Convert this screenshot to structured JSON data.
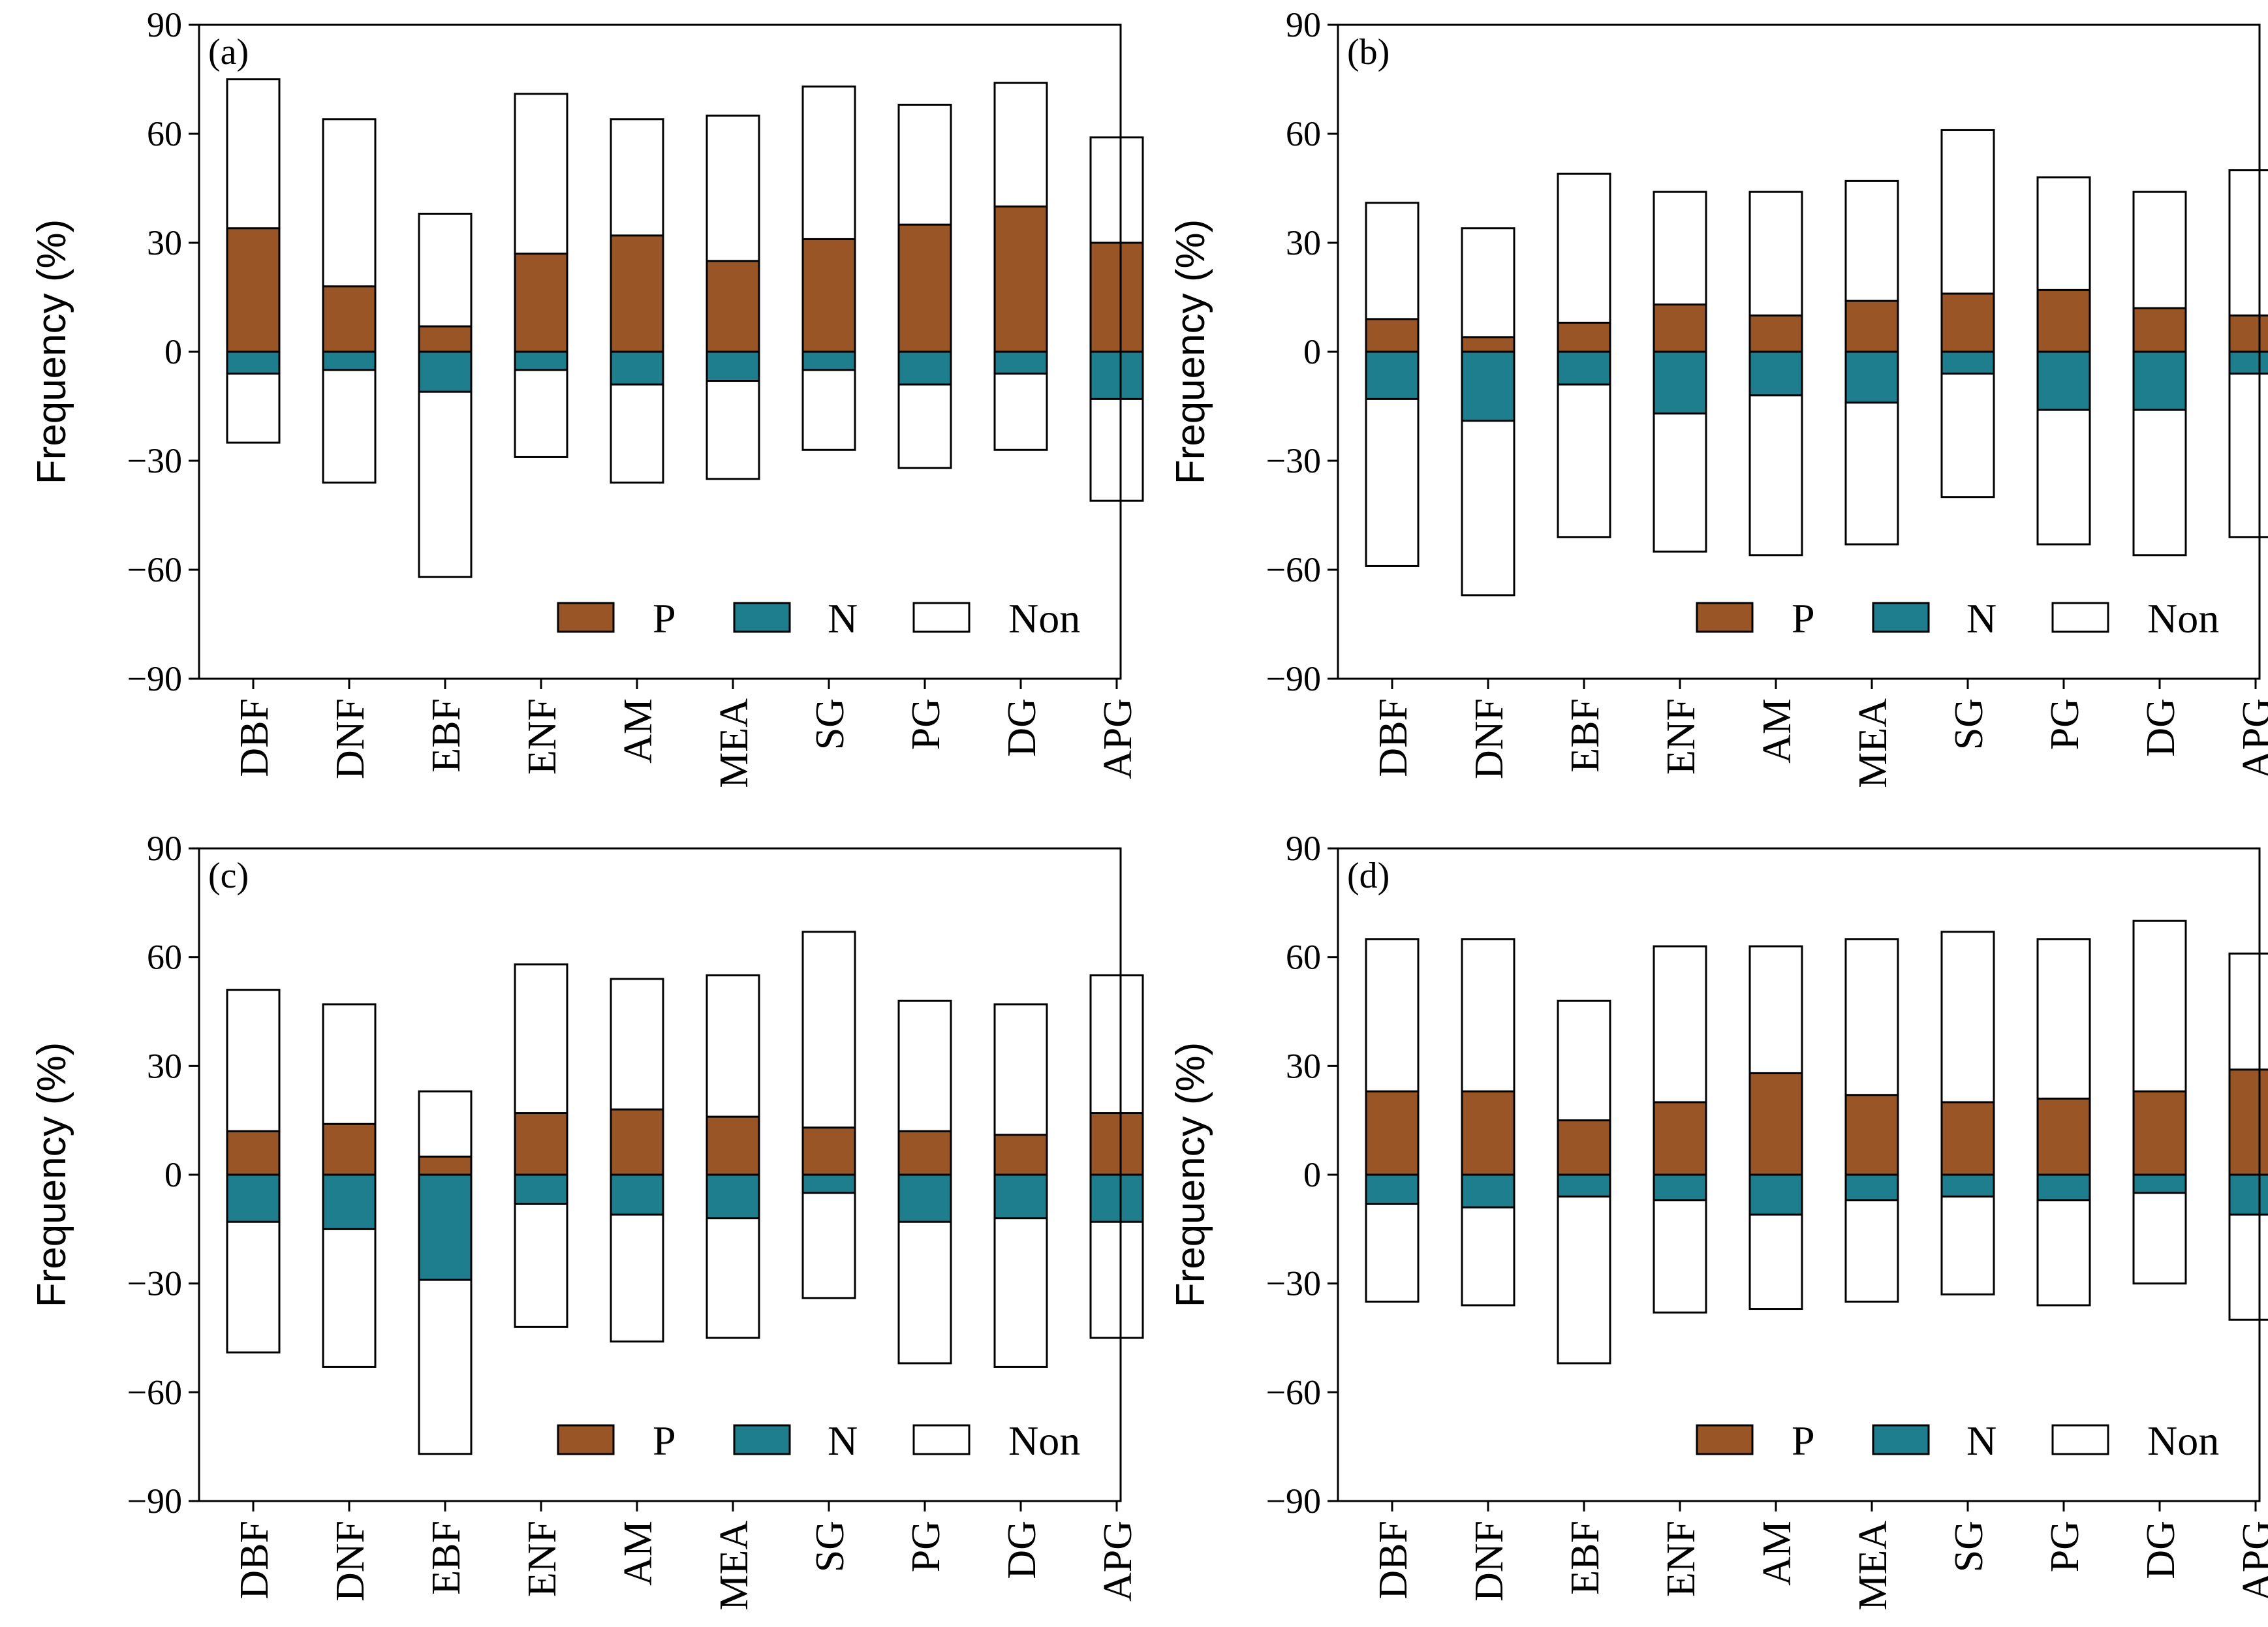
{
  "figure": {
    "legend": {
      "position": "bottom-right",
      "entries": [
        {
          "key": "P",
          "label": "P",
          "color": "#9A5526"
        },
        {
          "key": "N",
          "label": "N",
          "color": "#1E7E8E"
        },
        {
          "key": "Non",
          "label": "Non",
          "color": "#FFFFFF"
        }
      ]
    },
    "ylabel": "Frequency (%)",
    "yticks": [
      "−90",
      "−60",
      "−30",
      "0",
      "30",
      "60",
      "90"
    ]
  },
  "chart_data": [
    {
      "type": "bar",
      "panel_label": "(a)",
      "ylabel": "Frequency (%)",
      "ylim": [
        -90,
        90
      ],
      "categories": [
        "DBF",
        "DNF",
        "EBF",
        "ENF",
        "AM",
        "MEA",
        "SG",
        "PG",
        "DG",
        "APG"
      ],
      "series": [
        {
          "name": "P",
          "values": [
            34,
            18,
            7,
            27,
            32,
            25,
            31,
            35,
            40,
            30
          ]
        },
        {
          "name": "N",
          "values": [
            -6,
            -5,
            -11,
            -5,
            -9,
            -8,
            -5,
            -9,
            -6,
            -13
          ]
        },
        {
          "name": "Non",
          "top": [
            75,
            64,
            38,
            71,
            64,
            65,
            73,
            68,
            74,
            59
          ],
          "bottom": [
            -25,
            -36,
            -62,
            -29,
            -36,
            -35,
            -27,
            -32,
            -27,
            -41
          ]
        }
      ]
    },
    {
      "type": "bar",
      "panel_label": "(b)",
      "ylabel": "Frequency (%)",
      "ylim": [
        -90,
        90
      ],
      "categories": [
        "DBF",
        "DNF",
        "EBF",
        "ENF",
        "AM",
        "MEA",
        "SG",
        "PG",
        "DG",
        "APG"
      ],
      "series": [
        {
          "name": "P",
          "values": [
            9,
            4,
            8,
            13,
            10,
            14,
            16,
            17,
            12,
            10
          ]
        },
        {
          "name": "N",
          "values": [
            -13,
            -19,
            -9,
            -17,
            -12,
            -14,
            -6,
            -16,
            -16,
            -6
          ]
        },
        {
          "name": "Non",
          "top": [
            41,
            34,
            49,
            44,
            44,
            47,
            61,
            48,
            44,
            50
          ],
          "bottom": [
            -59,
            -67,
            -51,
            -55,
            -56,
            -53,
            -40,
            -53,
            -56,
            -51
          ]
        }
      ]
    },
    {
      "type": "bar",
      "panel_label": "(c)",
      "ylabel": "Frequency (%)",
      "ylim": [
        -90,
        90
      ],
      "categories": [
        "DBF",
        "DNF",
        "EBF",
        "ENF",
        "AM",
        "MEA",
        "SG",
        "PG",
        "DG",
        "APG"
      ],
      "series": [
        {
          "name": "P",
          "values": [
            12,
            14,
            5,
            17,
            18,
            16,
            13,
            12,
            11,
            17
          ]
        },
        {
          "name": "N",
          "values": [
            -13,
            -15,
            -29,
            -8,
            -11,
            -12,
            -5,
            -13,
            -12,
            -13
          ]
        },
        {
          "name": "Non",
          "top": [
            51,
            47,
            23,
            58,
            54,
            55,
            67,
            48,
            47,
            55
          ],
          "bottom": [
            -49,
            -53,
            -77,
            -42,
            -46,
            -45,
            -34,
            -52,
            -53,
            -45
          ]
        }
      ]
    },
    {
      "type": "bar",
      "panel_label": "(d)",
      "ylabel": "Frequency (%)",
      "ylim": [
        -90,
        90
      ],
      "categories": [
        "DBF",
        "DNF",
        "EBF",
        "ENF",
        "AM",
        "MEA",
        "SG",
        "PG",
        "DG",
        "APG"
      ],
      "series": [
        {
          "name": "P",
          "values": [
            23,
            23,
            15,
            20,
            28,
            22,
            20,
            21,
            23,
            29
          ]
        },
        {
          "name": "N",
          "values": [
            -8,
            -9,
            -6,
            -7,
            -11,
            -7,
            -6,
            -7,
            -5,
            -11
          ]
        },
        {
          "name": "Non",
          "top": [
            65,
            65,
            48,
            63,
            63,
            65,
            67,
            65,
            70,
            61
          ],
          "bottom": [
            -35,
            -36,
            -52,
            -38,
            -37,
            -35,
            -33,
            -36,
            -30,
            -40
          ]
        }
      ]
    }
  ]
}
